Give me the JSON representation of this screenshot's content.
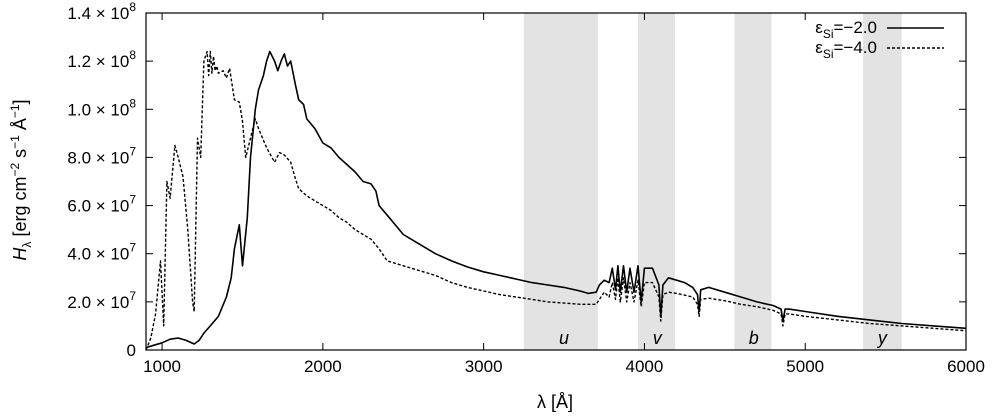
{
  "chart_data": {
    "type": "line",
    "xlabel_prefix": "λ [",
    "xlabel_unit": "Å",
    "xlabel_suffix": "]",
    "ylabel": {
      "symbol": "H",
      "sub": "λ",
      "bracket_open": " [erg cm",
      "exp1": "−2",
      "mid1": " s",
      "exp2": "−1",
      "mid2": " Å",
      "exp3": "−1",
      "bracket_close": "]"
    },
    "xlim": [
      900,
      6000
    ],
    "ylim": [
      0,
      140000000
    ],
    "x_ticks": [
      {
        "value": 1000,
        "label": "1000"
      },
      {
        "value": 2000,
        "label": "2000"
      },
      {
        "value": 3000,
        "label": "3000"
      },
      {
        "value": 4000,
        "label": "4000"
      },
      {
        "value": 5000,
        "label": "5000"
      },
      {
        "value": 6000,
        "label": "6000"
      }
    ],
    "y_ticks": [
      {
        "value": 0,
        "mant": "0",
        "exp": ""
      },
      {
        "value": 20000000,
        "mant": "2.0 × 10",
        "exp": "7"
      },
      {
        "value": 40000000,
        "mant": "4.0 × 10",
        "exp": "7"
      },
      {
        "value": 60000000,
        "mant": "6.0 × 10",
        "exp": "7"
      },
      {
        "value": 80000000,
        "mant": "8.0 × 10",
        "exp": "7"
      },
      {
        "value": 100000000,
        "mant": "1.0 × 10",
        "exp": "8"
      },
      {
        "value": 120000000,
        "mant": "1.2 × 10",
        "exp": "8"
      },
      {
        "value": 140000000,
        "mant": "1.4 × 10",
        "exp": "8"
      }
    ],
    "bands": [
      {
        "label": "u",
        "x0": 3250,
        "x1": 3710,
        "label_x": 3500
      },
      {
        "label": "v",
        "x0": 3960,
        "x1": 4190,
        "label_x": 4080
      },
      {
        "label": "b",
        "x0": 4560,
        "x1": 4790,
        "label_x": 4680
      },
      {
        "label": "y",
        "x0": 5360,
        "x1": 5600,
        "label_x": 5480
      }
    ],
    "band_color": "#e3e3e3",
    "legend_position": "top-right",
    "series": [
      {
        "legend_main": "ε",
        "legend_sub": "Si",
        "legend_value": "=−2.0",
        "style": "solid",
        "color": "#000000",
        "x": [
          900,
          950,
          1000,
          1050,
          1100,
          1150,
          1200,
          1230,
          1260,
          1300,
          1350,
          1400,
          1430,
          1450,
          1480,
          1500,
          1530,
          1550,
          1580,
          1600,
          1630,
          1650,
          1670,
          1700,
          1720,
          1740,
          1760,
          1780,
          1800,
          1830,
          1850,
          1880,
          1900,
          1950,
          2000,
          2050,
          2100,
          2150,
          2200,
          2250,
          2300,
          2330,
          2350,
          2400,
          2450,
          2500,
          2600,
          2700,
          2800,
          2900,
          3000,
          3100,
          3200,
          3300,
          3400,
          3500,
          3600,
          3650,
          3700,
          3720,
          3750,
          3780,
          3800,
          3820,
          3835,
          3850,
          3870,
          3890,
          3910,
          3935,
          3960,
          3980,
          4000,
          4050,
          4090,
          4102,
          4115,
          4150,
          4200,
          4250,
          4300,
          4330,
          4340,
          4350,
          4400,
          4500,
          4600,
          4700,
          4800,
          4850,
          4861,
          4875,
          4900,
          5000,
          5200,
          5400,
          5600,
          5800,
          6000
        ],
        "y": [
          1000000,
          2000000,
          3000000,
          4500000,
          5000000,
          4000000,
          2500000,
          4000000,
          7000000,
          10000000,
          14000000,
          22000000,
          30000000,
          42000000,
          52000000,
          35000000,
          55000000,
          80000000,
          100000000,
          108000000,
          114000000,
          120000000,
          124000000,
          120000000,
          116000000,
          120000000,
          123000000,
          118000000,
          120000000,
          110000000,
          104000000,
          102000000,
          96000000,
          92000000,
          86000000,
          84000000,
          80000000,
          77000000,
          74000000,
          70000000,
          69000000,
          66000000,
          60000000,
          56000000,
          52000000,
          48000000,
          44000000,
          40000000,
          37000000,
          34500000,
          32500000,
          31000000,
          29500000,
          28000000,
          27000000,
          26000000,
          24500000,
          23500000,
          24000000,
          27000000,
          29000000,
          28000000,
          34000000,
          25000000,
          35000000,
          24000000,
          35000000,
          24000000,
          34000000,
          24000000,
          35000000,
          20000000,
          34000000,
          34000000,
          27000000,
          14000000,
          27000000,
          30000000,
          29000000,
          28000000,
          26000000,
          23000000,
          16000000,
          25000000,
          26000000,
          24000000,
          22000000,
          20000000,
          18500000,
          17000000,
          12000000,
          17000000,
          17000000,
          16000000,
          14000000,
          12500000,
          11000000,
          10000000,
          9000000
        ]
      },
      {
        "legend_main": "ε",
        "legend_sub": "Si",
        "legend_value": "=−4.0",
        "style": "dashed",
        "color": "#000000",
        "x": [
          900,
          930,
          960,
          990,
          1010,
          1020,
          1030,
          1050,
          1080,
          1100,
          1130,
          1160,
          1190,
          1200,
          1220,
          1240,
          1260,
          1280,
          1290,
          1300,
          1310,
          1320,
          1330,
          1340,
          1350,
          1380,
          1400,
          1420,
          1450,
          1480,
          1500,
          1520,
          1550,
          1580,
          1600,
          1650,
          1700,
          1730,
          1760,
          1800,
          1830,
          1850,
          1900,
          1950,
          2000,
          2050,
          2100,
          2150,
          2200,
          2250,
          2300,
          2350,
          2400,
          2450,
          2500,
          2600,
          2700,
          2800,
          2900,
          3000,
          3100,
          3200,
          3300,
          3400,
          3500,
          3600,
          3700,
          3720,
          3750,
          3780,
          3800,
          3820,
          3835,
          3850,
          3870,
          3890,
          3910,
          3935,
          3960,
          3980,
          4000,
          4050,
          4090,
          4102,
          4115,
          4150,
          4200,
          4300,
          4330,
          4340,
          4350,
          4400,
          4500,
          4600,
          4700,
          4800,
          4850,
          4861,
          4875,
          4900,
          5000,
          5200,
          5400,
          5600,
          5800,
          6000
        ],
        "y": [
          0,
          5000000,
          15000000,
          37000000,
          10000000,
          40000000,
          70000000,
          63000000,
          85000000,
          80000000,
          72000000,
          50000000,
          20000000,
          16000000,
          88000000,
          80000000,
          120000000,
          124000000,
          114000000,
          124000000,
          115000000,
          122000000,
          116000000,
          118000000,
          115000000,
          116000000,
          113000000,
          117000000,
          104000000,
          103000000,
          95000000,
          80000000,
          88000000,
          96000000,
          92000000,
          84000000,
          78000000,
          82000000,
          81000000,
          78000000,
          71000000,
          67000000,
          64000000,
          62000000,
          60000000,
          58000000,
          55000000,
          53000000,
          50000000,
          48000000,
          46000000,
          42000000,
          37000000,
          36000000,
          35000000,
          33000000,
          31000000,
          28000000,
          26000000,
          24500000,
          23000000,
          22000000,
          21000000,
          20000000,
          19500000,
          19000000,
          19000000,
          21000000,
          24000000,
          22000000,
          28000000,
          21000000,
          30000000,
          20000000,
          30000000,
          20000000,
          28000000,
          20000000,
          29000000,
          18000000,
          28000000,
          28000000,
          22000000,
          12000000,
          23000000,
          24000000,
          23500000,
          22000000,
          19000000,
          14000000,
          21000000,
          21500000,
          20500000,
          19000000,
          18000000,
          16500000,
          15000000,
          10000000,
          15000000,
          15000000,
          14000000,
          12500000,
          11000000,
          10000000,
          9000000,
          8000000
        ]
      }
    ]
  }
}
